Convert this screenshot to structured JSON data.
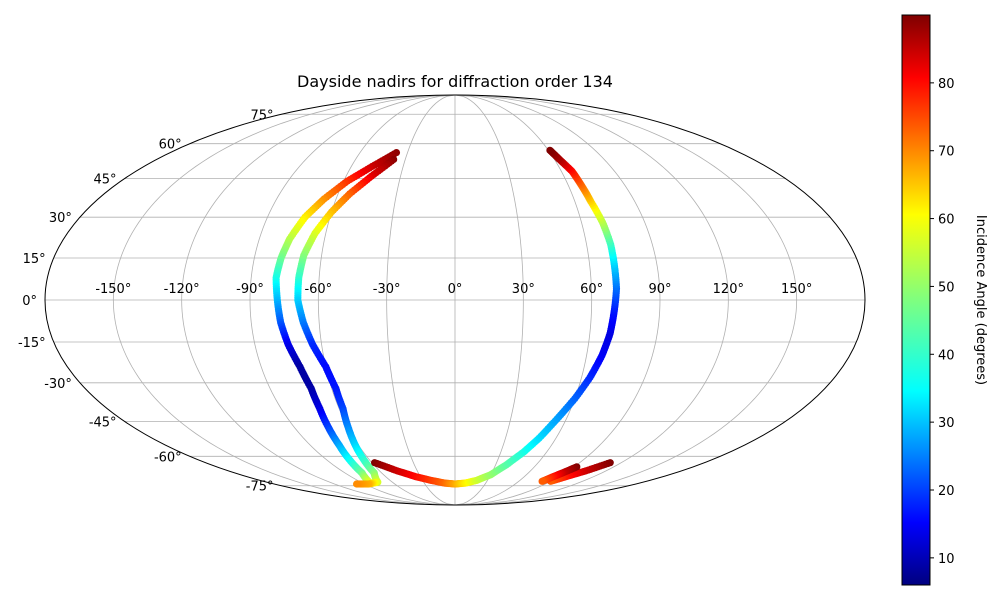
{
  "chart_data": {
    "type": "scatter",
    "projection": "mollweide",
    "title": "Dayside nadirs for diffraction order 134",
    "xlabel": "",
    "ylabel": "",
    "grid": true,
    "xlim": [
      -180,
      180
    ],
    "ylim": [
      -90,
      90
    ],
    "lon_ticks": [
      -150,
      -120,
      -90,
      -60,
      -30,
      0,
      30,
      60,
      90,
      120,
      150
    ],
    "lon_tick_labels": [
      "-150°",
      "-120°",
      "-90°",
      "-60°",
      "-30°",
      "0°",
      "30°",
      "60°",
      "90°",
      "120°",
      "150°"
    ],
    "lat_ticks": [
      -75,
      -60,
      -45,
      -30,
      -15,
      0,
      15,
      30,
      45,
      60,
      75
    ],
    "lat_tick_labels": [
      "-75°",
      "-60°",
      "-45°",
      "-30°",
      "-15°",
      "0°",
      "15°",
      "30°",
      "45°",
      "60°",
      "75°"
    ],
    "colorbar": {
      "label": "Incidence Angle (degrees)",
      "colormap": "jet",
      "range": [
        6,
        90
      ],
      "ticks": [
        10,
        20,
        30,
        40,
        50,
        60,
        70,
        80
      ],
      "tick_labels": [
        "10",
        "20",
        "30",
        "40",
        "50",
        "60",
        "70",
        "80"
      ]
    },
    "series": [
      {
        "points": [
          {
            "lon": -37,
            "lat": 56,
            "inc": 89
          },
          {
            "lon": -48,
            "lat": 50,
            "inc": 84
          },
          {
            "lon": -58,
            "lat": 44,
            "inc": 76
          },
          {
            "lon": -66,
            "lat": 37,
            "inc": 68
          },
          {
            "lon": -72,
            "lat": 30,
            "inc": 60
          },
          {
            "lon": -76,
            "lat": 22,
            "inc": 53
          },
          {
            "lon": -78,
            "lat": 15,
            "inc": 47
          },
          {
            "lon": -79,
            "lat": 8,
            "inc": 40
          },
          {
            "lon": -78,
            "lat": 0,
            "inc": 32
          },
          {
            "lon": -77,
            "lat": -8,
            "inc": 24
          },
          {
            "lon": -75,
            "lat": -16,
            "inc": 15
          },
          {
            "lon": -72,
            "lat": -24,
            "inc": 9
          },
          {
            "lon": -70,
            "lat": -32,
            "inc": 9
          },
          {
            "lon": -70,
            "lat": -40,
            "inc": 14
          },
          {
            "lon": -71,
            "lat": -48,
            "inc": 22
          },
          {
            "lon": -72,
            "lat": -55,
            "inc": 30
          },
          {
            "lon": -74,
            "lat": -62,
            "inc": 38
          },
          {
            "lon": -76,
            "lat": -68,
            "inc": 46
          },
          {
            "lon": -82,
            "lat": -73,
            "inc": 56
          }
        ]
      },
      {
        "points": [
          {
            "lon": -37,
            "lat": 53,
            "inc": 89
          },
          {
            "lon": -46,
            "lat": 46,
            "inc": 82
          },
          {
            "lon": -54,
            "lat": 39,
            "inc": 72
          },
          {
            "lon": -60,
            "lat": 32,
            "inc": 64
          },
          {
            "lon": -65,
            "lat": 24,
            "inc": 56
          },
          {
            "lon": -68,
            "lat": 16,
            "inc": 49
          },
          {
            "lon": -69,
            "lat": 8,
            "inc": 42
          },
          {
            "lon": -69,
            "lat": 0,
            "inc": 34
          },
          {
            "lon": -67,
            "lat": -8,
            "inc": 27
          },
          {
            "lon": -64,
            "lat": -16,
            "inc": 20
          },
          {
            "lon": -60,
            "lat": -24,
            "inc": 17
          },
          {
            "lon": -58,
            "lat": -32,
            "inc": 18
          },
          {
            "lon": -58,
            "lat": -40,
            "inc": 22
          },
          {
            "lon": -60,
            "lat": -48,
            "inc": 28
          },
          {
            "lon": -62,
            "lat": -55,
            "inc": 34
          },
          {
            "lon": -64,
            "lat": -62,
            "inc": 41
          },
          {
            "lon": -66,
            "lat": -68,
            "inc": 48
          },
          {
            "lon": -74,
            "lat": -73,
            "inc": 55
          },
          {
            "lon": -86,
            "lat": -74,
            "inc": 65
          },
          {
            "lon": -98,
            "lat": -74,
            "inc": 68
          }
        ]
      },
      {
        "points": [
          {
            "lon": -58,
            "lat": -63,
            "inc": 90
          },
          {
            "lon": -46,
            "lat": -67,
            "inc": 84
          },
          {
            "lon": -34,
            "lat": -70,
            "inc": 79
          },
          {
            "lon": -22,
            "lat": -72,
            "inc": 75
          },
          {
            "lon": -10,
            "lat": -73.5,
            "inc": 71
          },
          {
            "lon": 0,
            "lat": -74,
            "inc": 66
          },
          {
            "lon": 10,
            "lat": -73.5,
            "inc": 60
          },
          {
            "lon": 20,
            "lat": -72,
            "inc": 55
          },
          {
            "lon": 30,
            "lat": -69,
            "inc": 50
          },
          {
            "lon": 38,
            "lat": -64,
            "inc": 45
          },
          {
            "lon": 45,
            "lat": -58,
            "inc": 40
          },
          {
            "lon": 50,
            "lat": -52,
            "inc": 35
          },
          {
            "lon": 55,
            "lat": -44,
            "inc": 30
          },
          {
            "lon": 60,
            "lat": -36,
            "inc": 25
          },
          {
            "lon": 64,
            "lat": -28,
            "inc": 20
          },
          {
            "lon": 67,
            "lat": -20,
            "inc": 16
          },
          {
            "lon": 69,
            "lat": -12,
            "inc": 14
          },
          {
            "lon": 70,
            "lat": -4,
            "inc": 18
          },
          {
            "lon": 71,
            "lat": 4,
            "inc": 25
          },
          {
            "lon": 71,
            "lat": 12,
            "inc": 33
          },
          {
            "lon": 71,
            "lat": 20,
            "inc": 42
          },
          {
            "lon": 70,
            "lat": 28,
            "inc": 52
          },
          {
            "lon": 68,
            "lat": 36,
            "inc": 62
          },
          {
            "lon": 67,
            "lat": 42,
            "inc": 70
          },
          {
            "lon": 66,
            "lat": 48,
            "inc": 78
          },
          {
            "lon": 63,
            "lat": 53,
            "inc": 86
          },
          {
            "lon": 61,
            "lat": 57,
            "inc": 90
          }
        ]
      },
      {
        "points": [
          {
            "lon": 112,
            "lat": -63,
            "inc": 90
          },
          {
            "lon": 104,
            "lat": -67,
            "inc": 84
          },
          {
            "lon": 96,
            "lat": -70,
            "inc": 78
          },
          {
            "lon": 90,
            "lat": -72.5,
            "inc": 72
          }
        ]
      },
      {
        "points": [
          {
            "lon": 92,
            "lat": -65,
            "inc": 90
          },
          {
            "lon": 88,
            "lat": -68,
            "inc": 84
          },
          {
            "lon": 85,
            "lat": -70,
            "inc": 78
          },
          {
            "lon": 82,
            "lat": -72.5,
            "inc": 72
          }
        ]
      }
    ]
  }
}
